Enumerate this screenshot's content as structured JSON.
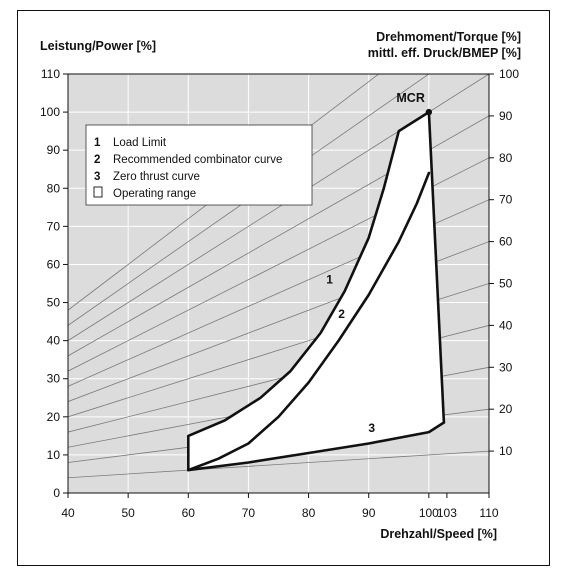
{
  "chart_data": {
    "type": "line",
    "title": "",
    "xlabel": "Drehzahl/Speed [%]",
    "ylabel_left": "Leistung/Power [%]",
    "ylabel_right_1": "Drehmoment/Torque  [%]",
    "ylabel_right_2": "mittl. eff. Druck/BMEP [%]",
    "xlim": [
      40,
      110
    ],
    "ylim": [
      0,
      110
    ],
    "x_ticks": [
      40,
      50,
      60,
      70,
      80,
      90,
      100,
      103,
      110
    ],
    "y_ticks_left": [
      0,
      10,
      20,
      30,
      40,
      50,
      60,
      70,
      80,
      90,
      100,
      110
    ],
    "y_ticks_right": [
      10,
      20,
      30,
      40,
      50,
      60,
      70,
      80,
      90,
      100
    ],
    "grid": true,
    "background_color": "#dcdcdc",
    "torque_lines": [
      10,
      20,
      30,
      40,
      50,
      60,
      70,
      80,
      90,
      100,
      110,
      120
    ],
    "legend": {
      "placement": "top-left",
      "entries": [
        {
          "num": "1",
          "text": "Load Limit"
        },
        {
          "num": "2",
          "text": "Recommended combinator curve"
        },
        {
          "num": "3",
          "text": "Zero thrust curve"
        },
        {
          "num": "",
          "text": "Operating range"
        }
      ]
    },
    "annotation_mcr": {
      "text": "MCR",
      "x": 100,
      "y": 100
    },
    "series": [
      {
        "label": "1",
        "x": [
          60,
          60,
          66,
          72,
          77,
          82,
          86,
          90,
          92.5,
          95,
          100
        ],
        "y": [
          6,
          15,
          19,
          25,
          32,
          42,
          53,
          67,
          80,
          95,
          100
        ]
      },
      {
        "label": "2",
        "x": [
          60,
          65,
          70,
          75,
          80,
          85,
          90,
          95,
          98,
          100
        ],
        "y": [
          6,
          9,
          13,
          20,
          29,
          40,
          52,
          66,
          76,
          84
        ]
      },
      {
        "label": "3",
        "x": [
          60,
          70,
          80,
          90,
          100,
          102.5
        ],
        "y": [
          6,
          8,
          10.5,
          13,
          16,
          18.5
        ]
      },
      {
        "label": "",
        "x": [
          100,
          102.5
        ],
        "y": [
          100,
          18.5
        ]
      }
    ],
    "curve_label_positions": [
      {
        "text": "1",
        "x": 83.5,
        "y": 55
      },
      {
        "text": "2",
        "x": 85.5,
        "y": 46
      },
      {
        "text": "3",
        "x": 90.5,
        "y": 16
      }
    ]
  }
}
